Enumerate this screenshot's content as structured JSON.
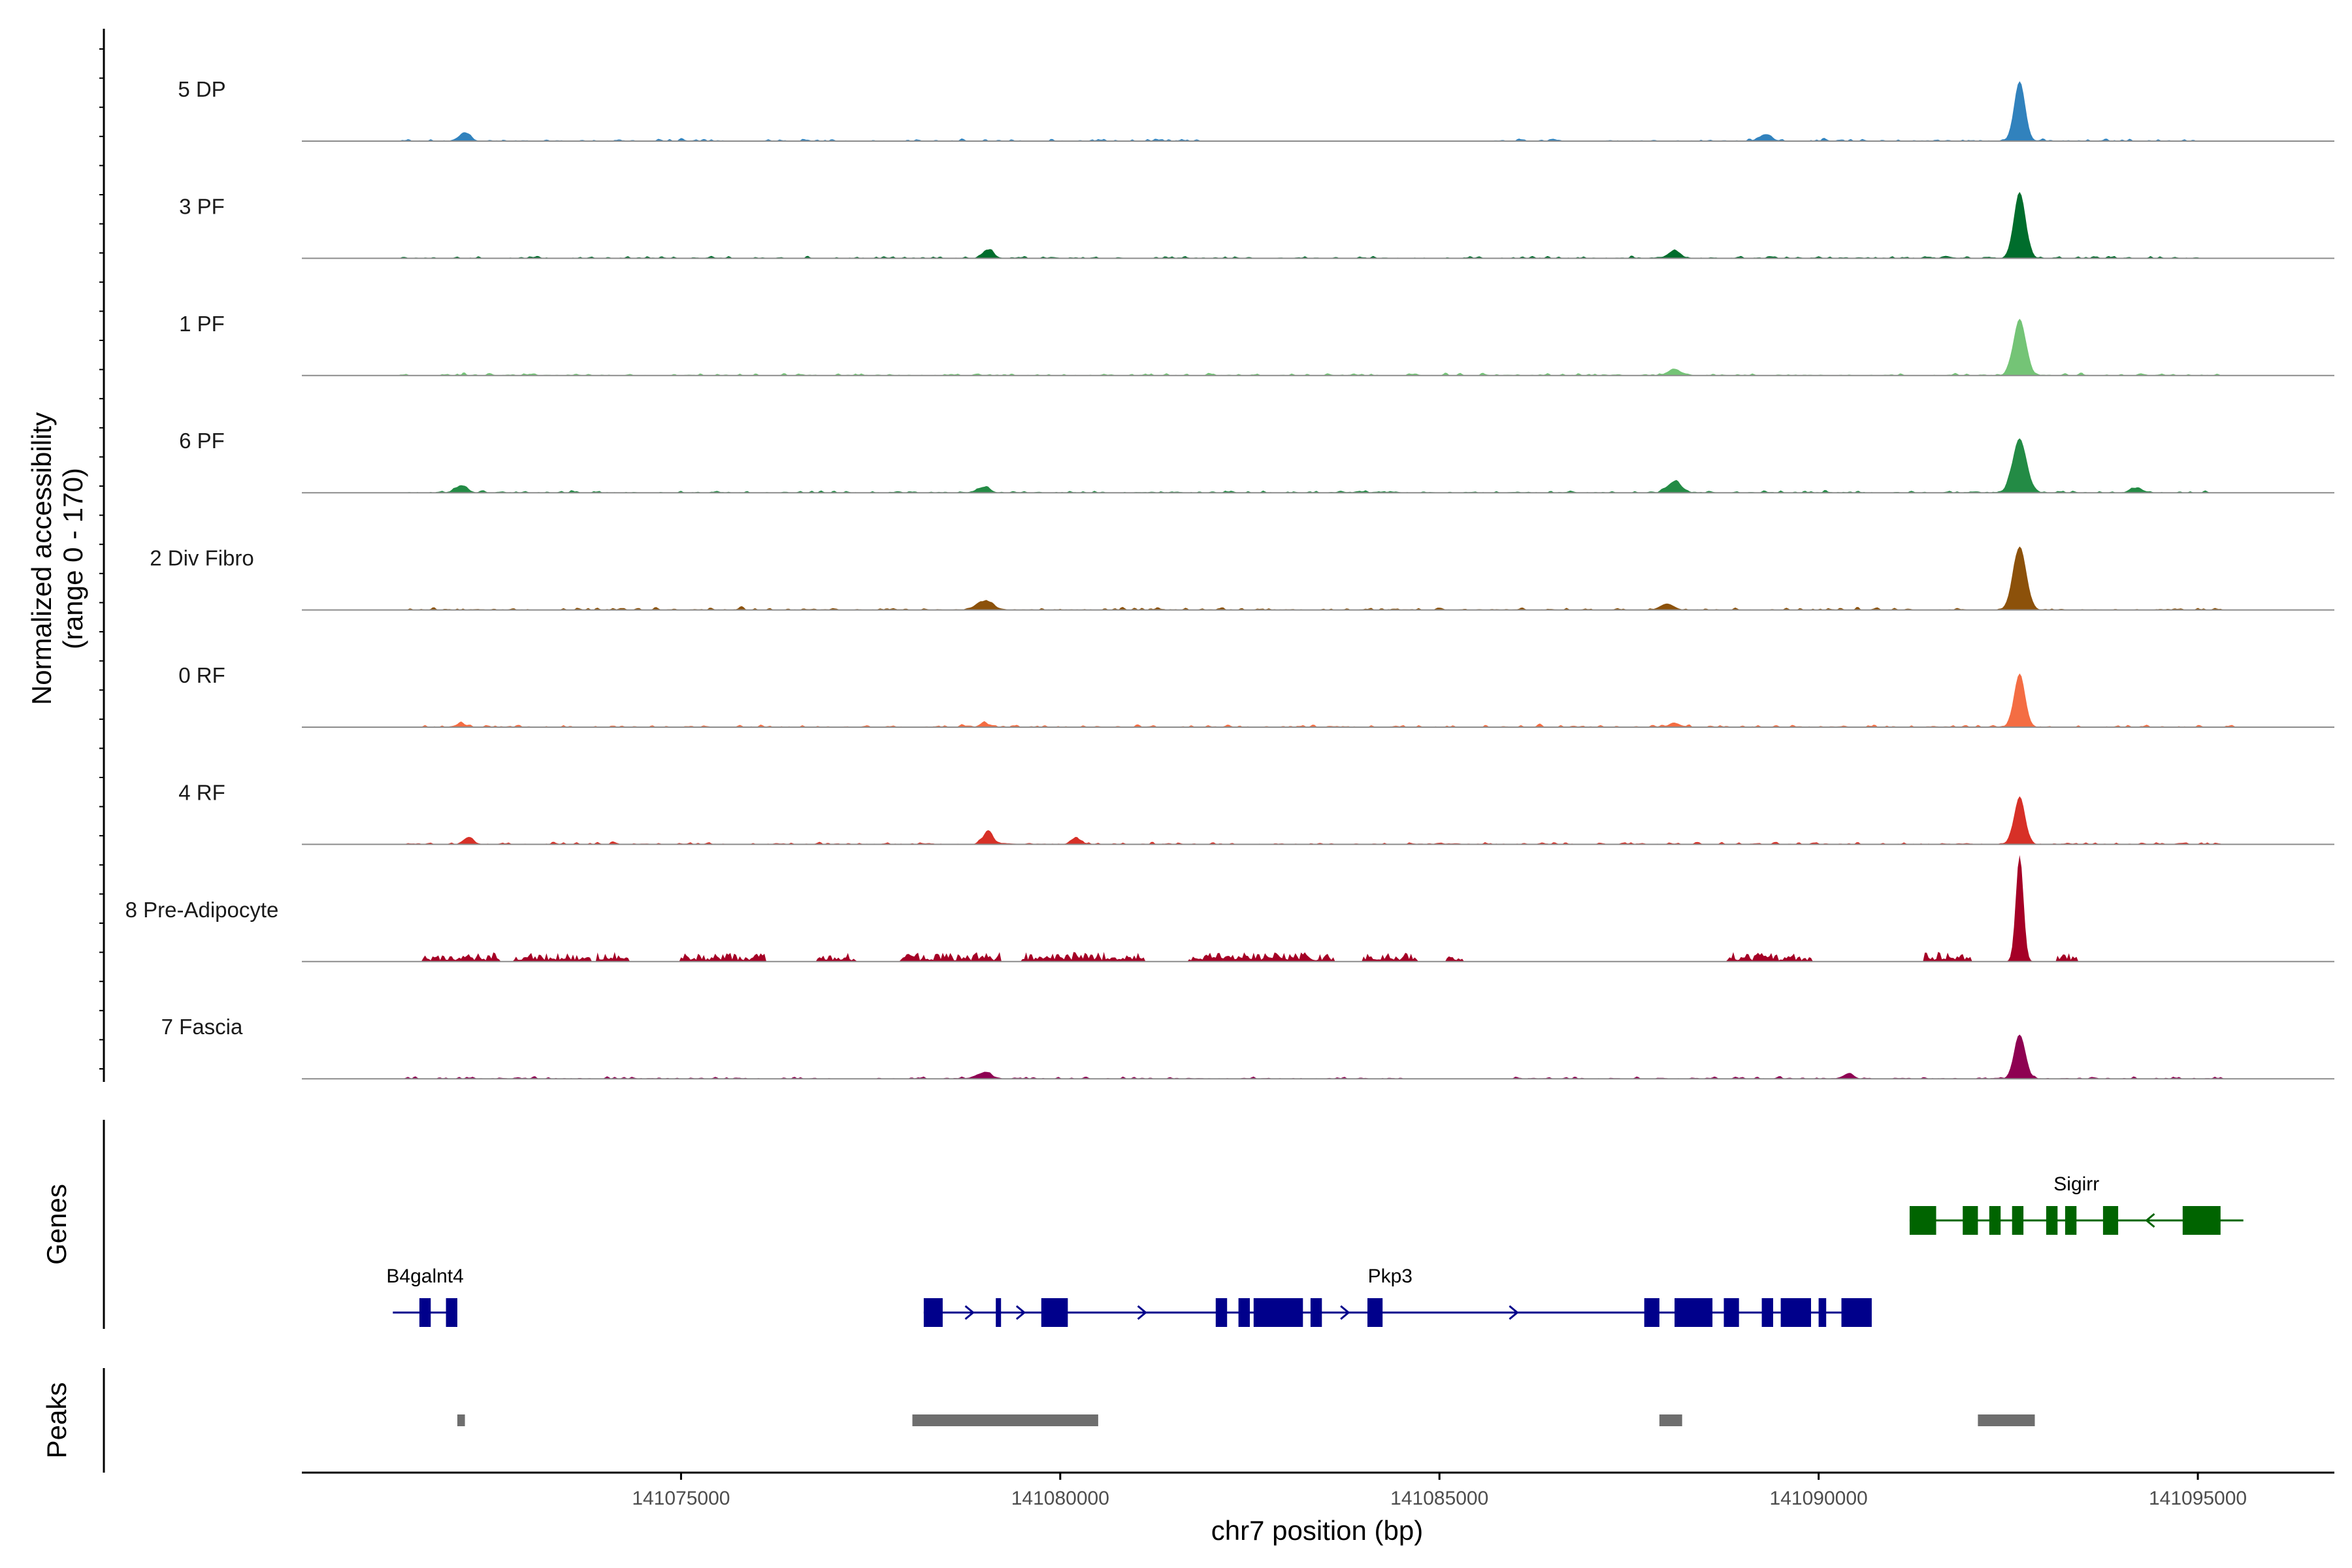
{
  "chart_data": {
    "type": "area",
    "title": "",
    "xlabel": "chr7 position (bp)",
    "ylabel": [
      "Normalized accessibility",
      "(range 0 - 170)"
    ],
    "ylim": [
      0,
      170
    ],
    "xlim": [
      141070000,
      141096800
    ],
    "x_ticks": [
      141075000,
      141080000,
      141085000,
      141090000,
      141095000
    ],
    "x_tick_labels": [
      "141075000",
      "141080000",
      "141085000",
      "141090000",
      "141095000"
    ],
    "panel_labels": {
      "genes": "Genes",
      "peaks": "Peaks"
    },
    "tracks": [
      {
        "name": "5 DP",
        "color": "#3182bd",
        "pattern": "sparse",
        "peaks": [
          [
            141092650,
            95,
            70
          ],
          [
            141072150,
            14,
            70
          ],
          [
            141089300,
            10,
            80
          ]
        ],
        "segments": [
          [
            141071300,
            141082000
          ],
          [
            141085700,
            141095000
          ]
        ]
      },
      {
        "name": "3 PF",
        "color": "#006d2c",
        "pattern": "sparse",
        "peaks": [
          [
            141092650,
            105,
            75
          ],
          [
            141079050,
            14,
            70
          ],
          [
            141088100,
            12,
            70
          ]
        ],
        "segments": [
          [
            141071300,
            141095000
          ]
        ]
      },
      {
        "name": "1 PF",
        "color": "#74c476",
        "pattern": "sparse",
        "peaks": [
          [
            141092650,
            90,
            80
          ],
          [
            141088100,
            10,
            80
          ]
        ],
        "segments": [
          [
            141071300,
            141095300
          ]
        ]
      },
      {
        "name": "6 PF",
        "color": "#238b45",
        "pattern": "sparse",
        "peaks": [
          [
            141092650,
            85,
            90
          ],
          [
            141088100,
            18,
            90
          ],
          [
            141072100,
            12,
            70
          ],
          [
            141079000,
            9,
            70
          ],
          [
            141094200,
            8,
            70
          ]
        ],
        "segments": [
          [
            141071300,
            141095300
          ]
        ]
      },
      {
        "name": "2 Div Fibro",
        "color": "#8c510a",
        "pattern": "sparse",
        "peaks": [
          [
            141092650,
            100,
            85
          ],
          [
            141079000,
            12,
            120
          ],
          [
            141088000,
            10,
            90
          ]
        ],
        "segments": [
          [
            141071300,
            141095500
          ]
        ]
      },
      {
        "name": "0 RF",
        "color": "#f46d43",
        "pattern": "sparse",
        "peaks": [
          [
            141092650,
            85,
            70
          ],
          [
            141088100,
            7,
            60
          ],
          [
            141079000,
            6,
            60
          ],
          [
            141072100,
            6,
            60
          ]
        ],
        "segments": [
          [
            141071300,
            141095500
          ]
        ]
      },
      {
        "name": "4 RF",
        "color": "#d73027",
        "pattern": "sparse",
        "peaks": [
          [
            141092650,
            75,
            70
          ],
          [
            141079050,
            22,
            60
          ],
          [
            141072200,
            12,
            60
          ],
          [
            141080200,
            10,
            60
          ]
        ],
        "segments": [
          [
            141071300,
            141095300
          ]
        ]
      },
      {
        "name": "8 Pre-Adipocyte",
        "color": "#a50026",
        "pattern": "blocky",
        "peaks": [
          [
            141092650,
            165,
            50
          ]
        ],
        "segments": [
          [
            141071600,
            141072600
          ],
          [
            141072800,
            141073800
          ],
          [
            141073900,
            141074300
          ],
          [
            141075000,
            141076100
          ],
          [
            141076800,
            141077300
          ],
          [
            141077900,
            141079200
          ],
          [
            141079500,
            141081100
          ],
          [
            141081700,
            141082700
          ],
          [
            141082700,
            141083600
          ],
          [
            141084000,
            141084700
          ],
          [
            141085100,
            141085300
          ],
          [
            141088800,
            141089900
          ],
          [
            141091400,
            141092000
          ],
          [
            141093150,
            141093400
          ]
        ]
      },
      {
        "name": "7 Fascia",
        "color": "#8e0152",
        "pattern": "sparse",
        "peaks": [
          [
            141092650,
            70,
            70
          ],
          [
            141079000,
            10,
            90
          ],
          [
            141090400,
            9,
            60
          ]
        ],
        "segments": [
          [
            141071300,
            141077000
          ],
          [
            141077500,
            141084500
          ],
          [
            141086000,
            141095300
          ]
        ]
      }
    ],
    "genes": [
      {
        "name": "B4galnt4",
        "color": "#00008b",
        "strand": "+",
        "row": 2,
        "start": 141071200,
        "end": 141072050,
        "exons": [
          [
            141071550,
            141071700
          ],
          [
            141071900,
            141072050
          ]
        ]
      },
      {
        "name": "Pkp3",
        "color": "#00008b",
        "strand": "+",
        "row": 2,
        "start": 141078200,
        "end": 141090500,
        "exons": [
          [
            141078200,
            141078450
          ],
          [
            141079150,
            141079200
          ],
          [
            141079750,
            141080100
          ],
          [
            141082050,
            141082200
          ],
          [
            141082350,
            141082500
          ],
          [
            141082550,
            141083200
          ],
          [
            141083300,
            141083450
          ],
          [
            141084050,
            141084250
          ],
          [
            141087700,
            141087900
          ],
          [
            141088100,
            141088600
          ],
          [
            141088750,
            141088950
          ],
          [
            141089250,
            141089400
          ],
          [
            141089500,
            141089900
          ],
          [
            141090000,
            141090100
          ],
          [
            141090300,
            141090700
          ]
        ]
      },
      {
        "name": "Sigirr",
        "color": "#006400",
        "strand": "-",
        "row": 1,
        "start": 141091200,
        "end": 141095600,
        "exons": [
          [
            141091200,
            141091550
          ],
          [
            141091900,
            141092100
          ],
          [
            141092250,
            141092400
          ],
          [
            141092550,
            141092700
          ],
          [
            141093000,
            141093150
          ],
          [
            141093250,
            141093400
          ],
          [
            141093750,
            141093950
          ],
          [
            141094800,
            141095300
          ]
        ]
      }
    ],
    "peaks": [
      {
        "start": 141072050,
        "end": 141072150
      },
      {
        "start": 141078050,
        "end": 141080500
      },
      {
        "start": 141087900,
        "end": 141088200
      },
      {
        "start": 141092100,
        "end": 141092850
      }
    ]
  }
}
